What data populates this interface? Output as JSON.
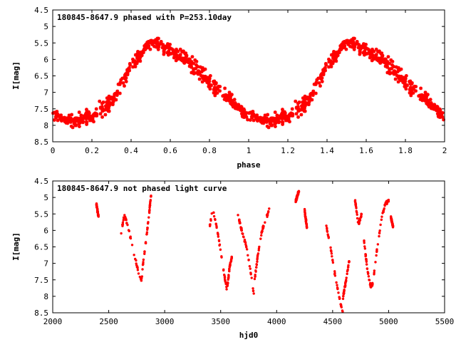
{
  "chart_data": [
    {
      "type": "scatter",
      "title": "180845-8647.9 phased with P=253.10day",
      "xlabel": "phase",
      "ylabel": "I[mag]",
      "xlim": [
        0,
        2
      ],
      "ylim": [
        8.5,
        4.5
      ],
      "y_inverted": true,
      "grid": false,
      "legend": "none",
      "marker": "star",
      "color": "#ff0000",
      "x_ticks": [
        "0",
        "0.2",
        "0.4",
        "0.6",
        "0.8",
        "1",
        "1.2",
        "1.4",
        "1.6",
        "1.8",
        "2"
      ],
      "y_ticks": [
        "4.5",
        "5",
        "5.5",
        "6",
        "6.5",
        "7",
        "7.5",
        "8",
        "8.5"
      ],
      "curve_phase": [
        0.0,
        0.1,
        0.2,
        0.3,
        0.4,
        0.5,
        0.6,
        0.7,
        0.8,
        0.9,
        1.0
      ],
      "curve_mag": [
        7.7,
        7.9,
        7.7,
        7.3,
        6.2,
        5.5,
        5.7,
        6.1,
        6.7,
        7.2,
        7.75
      ]
    },
    {
      "type": "scatter",
      "title": "180845-8647.9 not phased light curve",
      "xlabel": "hjd0",
      "ylabel": "I[mag]",
      "xlim": [
        2000,
        5500
      ],
      "ylim": [
        8.5,
        4.5
      ],
      "y_inverted": true,
      "grid": false,
      "legend": "none",
      "marker": "dot",
      "color": "#ff0000",
      "x_ticks": [
        "2000",
        "2500",
        "3000",
        "3500",
        "4000",
        "4500",
        "5000",
        "5500"
      ],
      "y_ticks": [
        "4.5",
        "5",
        "5.5",
        "6",
        "6.5",
        "7",
        "7.5",
        "8",
        "8.5"
      ],
      "segments": [
        {
          "x": [
            2390,
            2410
          ],
          "y": [
            5.2,
            5.6
          ]
        },
        {
          "x": [
            2610,
            2640,
            2680,
            2720,
            2760,
            2790,
            2800
          ],
          "y": [
            6.1,
            5.5,
            6.0,
            6.6,
            7.2,
            7.5,
            7.4
          ]
        },
        {
          "x": [
            2800,
            2830,
            2860,
            2880
          ],
          "y": [
            7.2,
            6.4,
            5.5,
            4.9
          ]
        },
        {
          "x": [
            3400,
            3430,
            3480,
            3530,
            3560
          ],
          "y": [
            5.9,
            5.3,
            6.2,
            7.3,
            7.9
          ]
        },
        {
          "x": [
            3560,
            3580,
            3600
          ],
          "y": [
            7.7,
            7.1,
            6.8
          ]
        },
        {
          "x": [
            3640,
            3680,
            3730,
            3770,
            3800
          ],
          "y": [
            5.3,
            5.9,
            6.5,
            7.3,
            8.0
          ]
        },
        {
          "x": [
            3800,
            3830,
            3870,
            3910,
            3940
          ],
          "y": [
            7.6,
            6.8,
            6.0,
            5.6,
            5.3
          ]
        },
        {
          "x": [
            4170,
            4200
          ],
          "y": [
            5.1,
            4.8
          ]
        },
        {
          "x": [
            4250,
            4270
          ],
          "y": [
            5.4,
            5.9
          ]
        },
        {
          "x": [
            4440,
            4480,
            4530,
            4570,
            4590
          ],
          "y": [
            5.8,
            6.5,
            7.5,
            8.2,
            8.5
          ]
        },
        {
          "x": [
            4590,
            4620,
            4650
          ],
          "y": [
            8.1,
            7.5,
            6.9
          ]
        },
        {
          "x": [
            4700,
            4730,
            4760
          ],
          "y": [
            5.1,
            5.8,
            5.5
          ]
        },
        {
          "x": [
            4780,
            4810,
            4840,
            4870
          ],
          "y": [
            6.3,
            7.2,
            7.7,
            7.6
          ]
        },
        {
          "x": [
            4870,
            4900,
            4940,
            4970,
            5000
          ],
          "y": [
            7.3,
            6.5,
            5.6,
            5.2,
            5.1
          ]
        },
        {
          "x": [
            5020,
            5040
          ],
          "y": [
            5.6,
            5.9
          ]
        }
      ]
    }
  ]
}
